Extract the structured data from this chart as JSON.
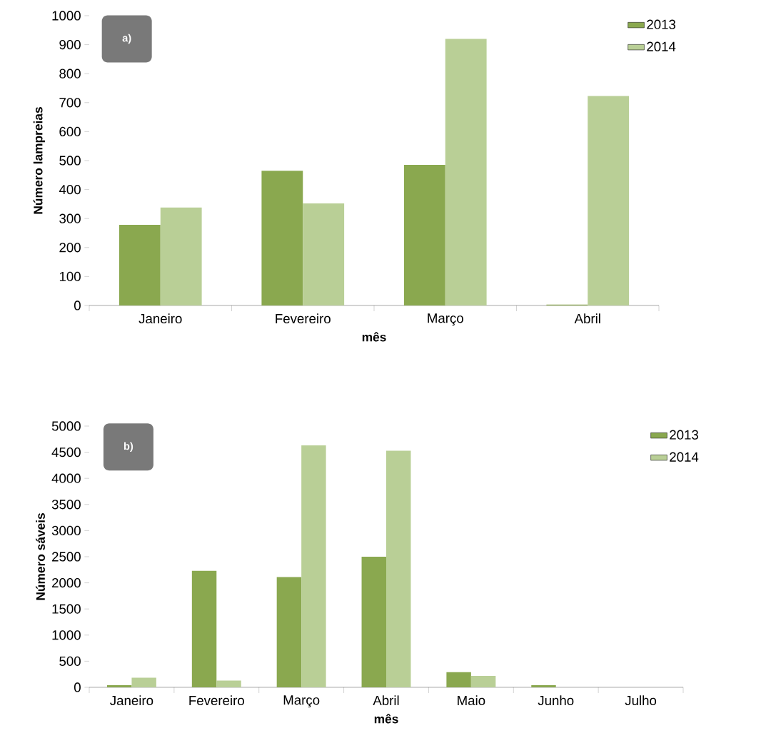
{
  "chart_data": [
    {
      "type": "bar",
      "annotations": [
        "a)"
      ],
      "xlabel": "mês",
      "ylabel": "Número  lampreias",
      "categories": [
        "Janeiro",
        "Fevereiro",
        "Março",
        "Abril"
      ],
      "series": [
        {
          "name": "2013",
          "color": "#8aa84f",
          "values": [
            278,
            465,
            485,
            3
          ]
        },
        {
          "name": "2014",
          "color": "#b9cf96",
          "values": [
            338,
            352,
            920,
            723
          ]
        }
      ],
      "ylim": [
        0,
        1000
      ],
      "yticks": [
        0,
        100,
        200,
        300,
        400,
        500,
        600,
        700,
        800,
        900,
        1000
      ],
      "legend": "top right"
    },
    {
      "type": "bar",
      "annotations": [
        "b)"
      ],
      "xlabel": "mês",
      "ylabel": "Número  sáveis",
      "categories": [
        "Janeiro",
        "Fevereiro",
        "Março",
        "Abril",
        "Maio",
        "Junho",
        "Julho"
      ],
      "series": [
        {
          "name": "2013",
          "color": "#8aa84f",
          "values": [
            40,
            2230,
            2110,
            2500,
            290,
            40,
            0
          ]
        },
        {
          "name": "2014",
          "color": "#b9cf96",
          "values": [
            185,
            130,
            4630,
            4530,
            220,
            0,
            0
          ]
        }
      ],
      "ylim": [
        0,
        5000
      ],
      "yticks": [
        0,
        500,
        1000,
        1500,
        2000,
        2500,
        3000,
        3500,
        4000,
        4500,
        5000
      ],
      "legend": "top right"
    }
  ]
}
